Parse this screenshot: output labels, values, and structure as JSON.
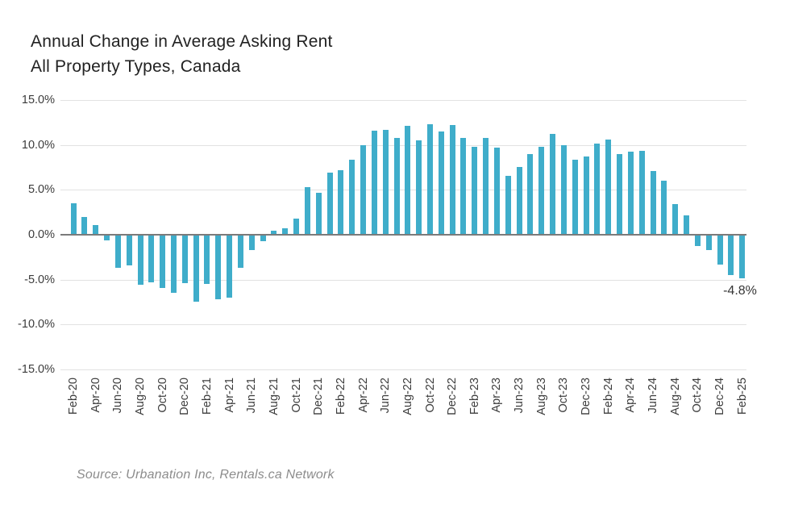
{
  "header": {
    "title_line1": "Annual Change in Average Asking Rent",
    "title_line2": "All Property Types, Canada"
  },
  "footer": {
    "source": "Source: Urbanation Inc, Rentals.ca Network"
  },
  "chart_data": {
    "type": "bar",
    "title": "Annual Change in Average Asking Rent",
    "subtitle": "All Property Types, Canada",
    "unit": "percent",
    "ylim": [
      -15,
      15
    ],
    "ytick_values": [
      15,
      10,
      5,
      0,
      -5,
      -10,
      -15
    ],
    "ytick_labels": [
      "15.0%",
      "10.0%",
      "5.0%",
      "0.0%",
      "-5.0%",
      "-10.0%",
      "-15.0%"
    ],
    "xtick_every": 2,
    "grid": true,
    "legend_position": "none",
    "bar_color": "#3fadca",
    "grid_color": "#e2e2e2",
    "zero_line_color": "#7b7b7b",
    "annotation": {
      "label": "-4.8%",
      "category": "Feb-25",
      "value": -4.8
    },
    "categories": [
      "Feb-20",
      "Mar-20",
      "Apr-20",
      "May-20",
      "Jun-20",
      "Jul-20",
      "Aug-20",
      "Sep-20",
      "Oct-20",
      "Nov-20",
      "Dec-20",
      "Jan-21",
      "Feb-21",
      "Mar-21",
      "Apr-21",
      "May-21",
      "Jun-21",
      "Jul-21",
      "Aug-21",
      "Sep-21",
      "Oct-21",
      "Nov-21",
      "Dec-21",
      "Jan-22",
      "Feb-22",
      "Mar-22",
      "Apr-22",
      "May-22",
      "Jun-22",
      "Jul-22",
      "Aug-22",
      "Sep-22",
      "Oct-22",
      "Nov-22",
      "Dec-22",
      "Jan-23",
      "Feb-23",
      "Mar-23",
      "Apr-23",
      "May-23",
      "Jun-23",
      "Jul-23",
      "Aug-23",
      "Sep-23",
      "Oct-23",
      "Nov-23",
      "Dec-23",
      "Jan-24",
      "Feb-24",
      "Mar-24",
      "Apr-24",
      "May-24",
      "Jun-24",
      "Jul-24",
      "Aug-24",
      "Sep-24",
      "Oct-24",
      "Nov-24",
      "Dec-24",
      "Jan-25",
      "Feb-25"
    ],
    "values": [
      3.4,
      1.9,
      1.0,
      -0.5,
      -3.6,
      -3.3,
      -5.5,
      -5.2,
      -5.8,
      -6.4,
      -5.3,
      -7.4,
      -5.4,
      -7.1,
      -6.9,
      -3.6,
      -1.6,
      -0.6,
      0.4,
      0.6,
      1.7,
      5.2,
      4.6,
      6.8,
      7.1,
      8.3,
      9.9,
      11.5,
      11.6,
      10.7,
      12.0,
      10.4,
      12.2,
      11.4,
      12.1,
      10.7,
      9.7,
      10.7,
      9.6,
      6.5,
      7.5,
      8.9,
      9.7,
      11.1,
      9.9,
      8.3,
      8.6,
      10.1,
      10.5,
      8.9,
      9.2,
      9.3,
      7.0,
      5.9,
      3.3,
      2.1,
      -1.2,
      -1.6,
      -3.2,
      -4.4,
      -4.8
    ]
  }
}
